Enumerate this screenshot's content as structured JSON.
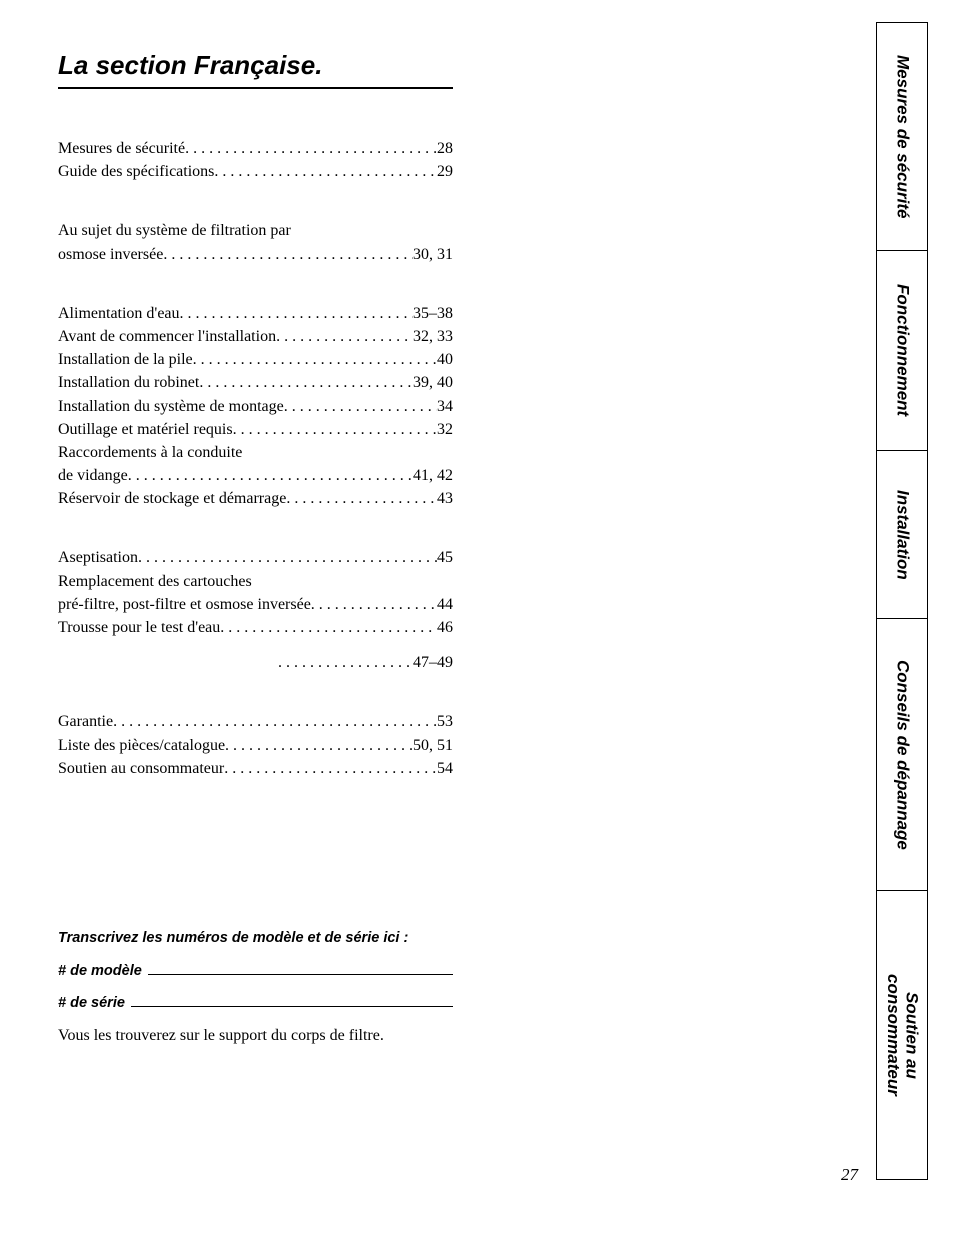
{
  "title": "La section Française.",
  "toc": {
    "group1": [
      {
        "label": "Mesures de sécurité",
        "page": "28"
      },
      {
        "label": "Guide des spécifications",
        "page": "29"
      }
    ],
    "group2": [
      {
        "prelabel": "Au sujet du système de filtration par",
        "label": "osmose inversée",
        "page": "30, 31"
      }
    ],
    "group3": [
      {
        "label": "Alimentation d'eau",
        "page": "35–38"
      },
      {
        "label": "Avant de commencer l'installation",
        "page": "32, 33"
      },
      {
        "label": "Installation de la pile",
        "page": "40"
      },
      {
        "label": "Installation du robinet",
        "page": "39, 40"
      },
      {
        "label": "Installation du système de montage",
        "page": "34"
      },
      {
        "label": "Outillage et matériel requis",
        "page": "32"
      },
      {
        "prelabel": "Raccordements à la conduite",
        "label": "de vidange",
        "page": "41, 42"
      },
      {
        "label": "Réservoir de stockage et démarrage",
        "page": "43"
      }
    ],
    "group4": [
      {
        "label": "Aseptisation",
        "page": "45"
      },
      {
        "prelabel": "Remplacement des cartouches",
        "label": "pré-filtre, post-filtre et osmose inversée",
        "page": "44"
      },
      {
        "label": "Trousse pour le test d'eau",
        "page": "46"
      }
    ],
    "group4_orphan": {
      "label": "",
      "page": "47–49"
    },
    "group5": [
      {
        "label": "Garantie",
        "page": "53"
      },
      {
        "label": "Liste des pièces/catalogue",
        "page": "50, 51"
      },
      {
        "label": "Soutien au consommateur",
        "page": "54"
      }
    ]
  },
  "model_section": {
    "prompt": "Transcrivez les numéros de modèle et de série ici :",
    "model_label": "# de modèle",
    "serial_label": "# de série",
    "note": "Vous les trouverez sur le support du corps de filtre."
  },
  "tabs": [
    "Mesures de sécurité",
    "Fonctionnement",
    "Installation",
    "Conseils de dépannage",
    "Soutien au\nconsommateur"
  ],
  "page_number": "27"
}
